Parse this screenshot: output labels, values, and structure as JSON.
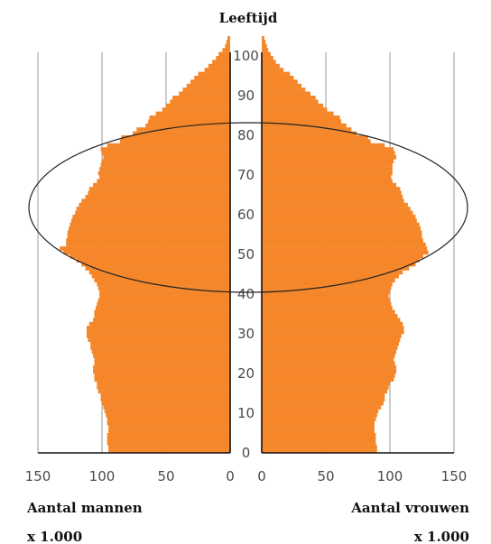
{
  "chart_data": {
    "type": "population_pyramid",
    "title": "Leeftijd",
    "xlabel_left": [
      "Aantal mannen",
      "x 1.000"
    ],
    "xlabel_right": [
      "Aantal vrouwen",
      "x 1.000"
    ],
    "x_ticks_left": [
      "150",
      "100",
      "50",
      "0"
    ],
    "x_ticks_right": [
      "0",
      "50",
      "100",
      "150"
    ],
    "xlim": [
      0,
      150
    ],
    "ylim": [
      0,
      105
    ],
    "y_ticks": [
      "0",
      "10",
      "20",
      "30",
      "40",
      "50",
      "60",
      "70",
      "80",
      "90",
      "100"
    ],
    "grid": true,
    "bar_color": "#f5872a",
    "highlight": "ellipse around ages ~40-83",
    "ages": [
      0,
      1,
      2,
      3,
      4,
      5,
      6,
      7,
      8,
      9,
      10,
      11,
      12,
      13,
      14,
      15,
      16,
      17,
      18,
      19,
      20,
      21,
      22,
      23,
      24,
      25,
      26,
      27,
      28,
      29,
      30,
      31,
      32,
      33,
      34,
      35,
      36,
      37,
      38,
      39,
      40,
      41,
      42,
      43,
      44,
      45,
      46,
      47,
      48,
      49,
      50,
      51,
      52,
      53,
      54,
      55,
      56,
      57,
      58,
      59,
      60,
      61,
      62,
      63,
      64,
      65,
      66,
      67,
      68,
      69,
      70,
      71,
      72,
      73,
      74,
      75,
      76,
      77,
      78,
      79,
      80,
      81,
      82,
      83,
      84,
      85,
      86,
      87,
      88,
      89,
      90,
      91,
      92,
      93,
      94,
      95,
      96,
      97,
      98,
      99,
      100,
      101,
      102,
      103,
      104
    ],
    "male": [
      95,
      95,
      96,
      96,
      96,
      95,
      95,
      96,
      96,
      97,
      98,
      99,
      100,
      101,
      101,
      103,
      104,
      104,
      106,
      106,
      107,
      107,
      106,
      106,
      107,
      108,
      109,
      109,
      111,
      112,
      112,
      112,
      110,
      107,
      106,
      106,
      105,
      104,
      103,
      102,
      102,
      103,
      104,
      106,
      108,
      110,
      113,
      116,
      120,
      125,
      130,
      133,
      128,
      128,
      127,
      127,
      126,
      125,
      124,
      123,
      121,
      120,
      118,
      116,
      113,
      111,
      110,
      107,
      104,
      102,
      103,
      102,
      101,
      100,
      99,
      100,
      101,
      96,
      86,
      85,
      76,
      73,
      66,
      64,
      63,
      58,
      53,
      50,
      47,
      45,
      40,
      37,
      34,
      31,
      28,
      25,
      20,
      17,
      14,
      11,
      9,
      6,
      4,
      3,
      2
    ],
    "female": [
      90,
      90,
      89,
      89,
      89,
      88,
      88,
      88,
      89,
      90,
      91,
      93,
      95,
      96,
      96,
      98,
      99,
      100,
      103,
      104,
      105,
      105,
      104,
      103,
      104,
      105,
      106,
      107,
      108,
      109,
      111,
      111,
      110,
      108,
      106,
      104,
      102,
      101,
      100,
      99,
      100,
      101,
      102,
      104,
      107,
      110,
      115,
      120,
      123,
      126,
      130,
      129,
      128,
      126,
      125,
      125,
      124,
      123,
      121,
      120,
      118,
      116,
      114,
      111,
      110,
      109,
      108,
      105,
      102,
      101,
      102,
      102,
      102,
      103,
      105,
      104,
      103,
      96,
      85,
      83,
      74,
      70,
      66,
      62,
      61,
      56,
      51,
      48,
      44,
      42,
      38,
      34,
      31,
      28,
      25,
      22,
      17,
      14,
      11,
      9,
      7,
      5,
      4,
      3,
      2
    ]
  }
}
